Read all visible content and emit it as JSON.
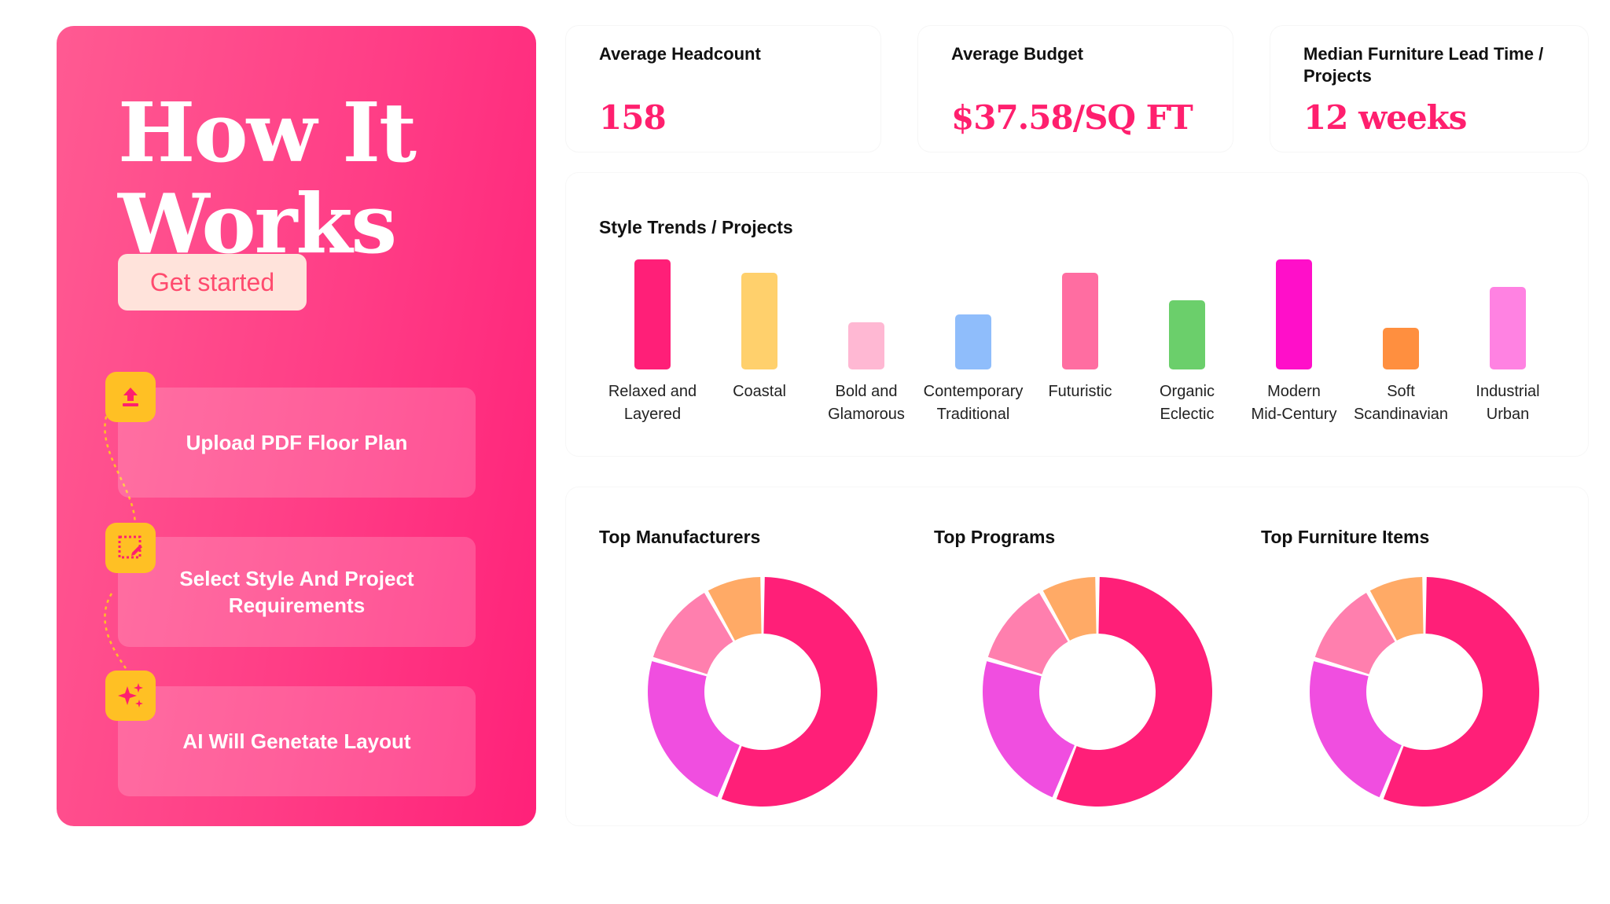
{
  "hero": {
    "title": "How It Works",
    "cta_label": "Get started",
    "steps": [
      {
        "label": "Upload PDF Floor Plan",
        "icon": "upload-icon"
      },
      {
        "label": "Select Style And Project Requirements",
        "icon": "select-edit-icon"
      },
      {
        "label": "AI Will Genetate Layout",
        "icon": "sparkles-icon"
      }
    ],
    "colors": {
      "gradient_start": "#ff5a92",
      "gradient_end": "#ff2179",
      "badge": "#ffc024",
      "cta_bg": "#ffe3db",
      "cta_text": "#ff4b6e"
    }
  },
  "kpis": [
    {
      "label": "Average Headcount",
      "value": "158"
    },
    {
      "label": "Average Budget",
      "value": "$37.58/SQ FT"
    },
    {
      "label": "Median Furniture Lead Time / Projects",
      "value": "12 weeks"
    }
  ],
  "trends": {
    "title": "Style Trends / Projects"
  },
  "donuts": {
    "titles": [
      "Top Manufacturers",
      "Top Programs",
      "Top Furniture Items"
    ]
  },
  "chart_data": [
    {
      "type": "bar",
      "title": "Style Trends / Projects",
      "categories": [
        "Relaxed and\nLayered",
        "Coastal",
        "Bold and\nGlamorous",
        "Contemporary\nTraditional",
        "Futuristic",
        "Organic\nEclectic",
        "Modern\nMid-Century",
        "Soft\nScandinavian",
        "Industrial\nUrban"
      ],
      "values": [
        10,
        8.8,
        4.3,
        5,
        8.8,
        6.3,
        10,
        3.8,
        7.5
      ],
      "colors": [
        "#ff1f78",
        "#ffd06c",
        "#ffb8d3",
        "#8fbdfb",
        "#ff6da1",
        "#6bcf6b",
        "#ff0fc9",
        "#ff8f3f",
        "#ff82e2"
      ],
      "ylim": [
        0,
        10
      ],
      "grid": false
    },
    {
      "type": "pie",
      "title": "Top Manufacturers",
      "values": [
        55,
        23,
        12,
        8
      ],
      "colors": [
        "#ff1f78",
        "#f04ee0",
        "#ff7fae",
        "#ffaa66"
      ]
    },
    {
      "type": "pie",
      "title": "Top Programs",
      "values": [
        55,
        23,
        12,
        8
      ],
      "colors": [
        "#ff1f78",
        "#f04ee0",
        "#ff7fae",
        "#ffaa66"
      ]
    },
    {
      "type": "pie",
      "title": "Top Furniture Items",
      "values": [
        55,
        23,
        12,
        8
      ],
      "colors": [
        "#ff1f78",
        "#f04ee0",
        "#ff7fae",
        "#ffaa66"
      ]
    }
  ]
}
